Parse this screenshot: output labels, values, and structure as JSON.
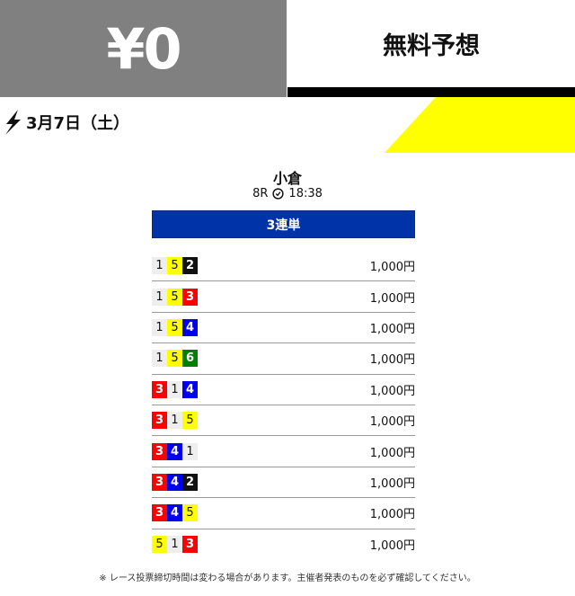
{
  "header": {
    "price": "¥0",
    "title": "無料予想"
  },
  "date": "3月7日（土）",
  "race": {
    "venue": "小倉",
    "race_no": "8R",
    "time": "18:38",
    "bet_type": "3連単"
  },
  "colors": {
    "1": "#eeeeee",
    "2": "#111111",
    "3": "#ff0000",
    "4": "#0000ee",
    "5": "#ffff00",
    "6": "#008000",
    "header_gray": "#808080",
    "accent_yellow": "#ffff00",
    "bet_type_blue": "#0033a8"
  },
  "picks": [
    {
      "combo": [
        "1",
        "5",
        "2"
      ],
      "amount": "1,000円"
    },
    {
      "combo": [
        "1",
        "5",
        "3"
      ],
      "amount": "1,000円"
    },
    {
      "combo": [
        "1",
        "5",
        "4"
      ],
      "amount": "1,000円"
    },
    {
      "combo": [
        "1",
        "5",
        "6"
      ],
      "amount": "1,000円"
    },
    {
      "combo": [
        "3",
        "1",
        "4"
      ],
      "amount": "1,000円"
    },
    {
      "combo": [
        "3",
        "1",
        "5"
      ],
      "amount": "1,000円"
    },
    {
      "combo": [
        "3",
        "4",
        "1"
      ],
      "amount": "1,000円"
    },
    {
      "combo": [
        "3",
        "4",
        "2"
      ],
      "amount": "1,000円"
    },
    {
      "combo": [
        "3",
        "4",
        "5"
      ],
      "amount": "1,000円"
    },
    {
      "combo": [
        "5",
        "1",
        "3"
      ],
      "amount": "1,000円"
    }
  ],
  "note": "※ レース投票締切時間は変わる場合があります。主催者発表のものを必ず確認してください。"
}
